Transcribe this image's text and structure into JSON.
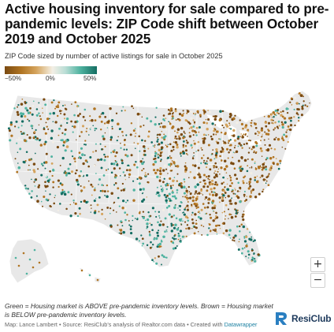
{
  "title": "Active housing inventory for sale compared to pre-pandemic levels: ZIP Code shift between October 2019 and October 2025",
  "subtitle": "ZIP Code sized by number of active listings for sale in October 2025",
  "legend": {
    "ticks": [
      "−50%",
      "0%",
      "50%"
    ],
    "colors": [
      "#7a4a11",
      "#b07422",
      "#d4a35c",
      "#f3efe6",
      "#4fb3a0",
      "#146d62"
    ]
  },
  "map": {
    "region": "United States (contiguous, Alaska, Hawaii)",
    "land_color": "#e8e8e8",
    "border_color": "#ffffff"
  },
  "zoom": {
    "in_label": "+",
    "out_label": "−"
  },
  "note": "Green = Housing market is ABOVE pre-pandemic inventory levels. Brown = Housing market is BELOW pre-pandemic inventory levels.",
  "footer": {
    "prefix": "Map: Lance Lambert • Source: ResiClub's analysis of Realtor.com data • Created with ",
    "tool": "Datawrapper"
  },
  "logo": {
    "text": "ResiClub",
    "icon": "resiclub-logo-icon"
  }
}
